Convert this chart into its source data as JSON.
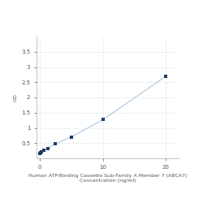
{
  "x": [
    0,
    0.078,
    0.156,
    0.313,
    0.625,
    1.25,
    2.5,
    5,
    10,
    20
  ],
  "y": [
    0.15,
    0.17,
    0.19,
    0.22,
    0.27,
    0.33,
    0.48,
    0.7,
    1.27,
    2.7
  ],
  "xlabel_line1": "Human ATP-Binding Cassette Sub-Family A Member 7 (ABCA7)",
  "xlabel_line2": "Concentration (ng/ml)",
  "ylabel": "OD",
  "xlim": [
    -0.5,
    22
  ],
  "ylim": [
    0,
    4.0
  ],
  "yticks": [
    0.5,
    1.0,
    1.5,
    2.0,
    2.5,
    3.0,
    3.5
  ],
  "ytick_labels": [
    "0.5",
    "1",
    "1.5",
    "2",
    "2.5",
    "3",
    "3.5"
  ],
  "xticks": [
    0,
    10,
    20
  ],
  "xtick_labels": [
    "0",
    "10",
    "20"
  ],
  "line_color": "#a8c8e8",
  "marker_color": "#1f3a6e",
  "marker_size": 3.5,
  "grid_color": "#cccccc",
  "background_color": "#ffffff",
  "font_size_label": 4.5,
  "font_size_tick": 5.0,
  "spine_color": "#aaaaaa"
}
